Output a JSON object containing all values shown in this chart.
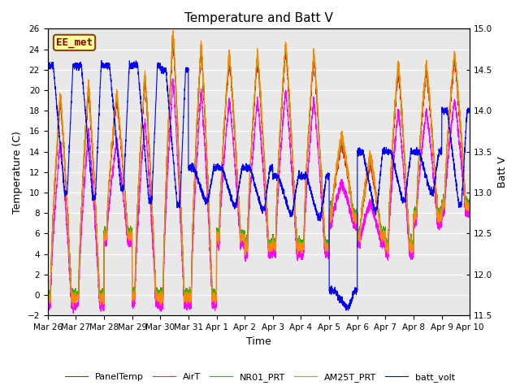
{
  "title": "Temperature and Batt V",
  "ylabel_left": "Temperature (C)",
  "ylabel_right": "Batt V",
  "xlabel": "Time",
  "annotation": "EE_met",
  "ylim_left": [
    -2,
    26
  ],
  "ylim_right": [
    11.5,
    15.0
  ],
  "yticks_left": [
    -2,
    0,
    2,
    4,
    6,
    8,
    10,
    12,
    14,
    16,
    18,
    20,
    22,
    24,
    26
  ],
  "yticks_right": [
    11.5,
    12.0,
    12.5,
    13.0,
    13.5,
    14.0,
    14.5,
    15.0
  ],
  "colors": {
    "PanelTemp": "#ff0000",
    "AirT": "#ff00ff",
    "NR01_PRT": "#00cc00",
    "AM25T_PRT": "#ff8800",
    "batt_volt": "#0000ff"
  },
  "legend_labels": [
    "PanelTemp",
    "AirT",
    "NR01_PRT",
    "AM25T_PRT",
    "batt_volt"
  ],
  "fig_facecolor": "#ffffff",
  "plot_bg_color": "#e8e8e8",
  "grid_color": "#ffffff",
  "x_tick_labels": [
    "Mar 26",
    "Mar 27",
    "Mar 28",
    "Mar 29",
    "Mar 30",
    "Mar 31",
    "Apr 1",
    "Apr 2",
    "Apr 3",
    "Apr 4",
    "Apr 5",
    "Apr 6",
    "Apr 7",
    "Apr 8",
    "Apr 9",
    "Apr 10"
  ]
}
